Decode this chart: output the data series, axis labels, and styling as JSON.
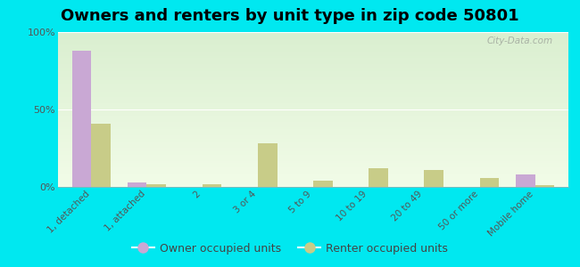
{
  "title": "Owners and renters by unit type in zip code 50801",
  "categories": [
    "1, detached",
    "1, attached",
    "2",
    "3 or 4",
    "5 to 9",
    "10 to 19",
    "20 to 49",
    "50 or more",
    "Mobile home"
  ],
  "owner_values": [
    88,
    3,
    0,
    0,
    0,
    0,
    0,
    0,
    8
  ],
  "renter_values": [
    41,
    2,
    2,
    28,
    4,
    12,
    11,
    6,
    1
  ],
  "owner_color": "#c9a8d4",
  "renter_color": "#c8cc88",
  "background_color": "#00e8f0",
  "plot_bg_top": "#daefd0",
  "plot_bg_bottom": "#f2fce8",
  "ylim": [
    0,
    100
  ],
  "yticks": [
    0,
    50,
    100
  ],
  "ytick_labels": [
    "0%",
    "50%",
    "100%"
  ],
  "bar_width": 0.35,
  "legend_owner": "Owner occupied units",
  "legend_renter": "Renter occupied units",
  "title_fontsize": 13,
  "watermark": "City-Data.com"
}
